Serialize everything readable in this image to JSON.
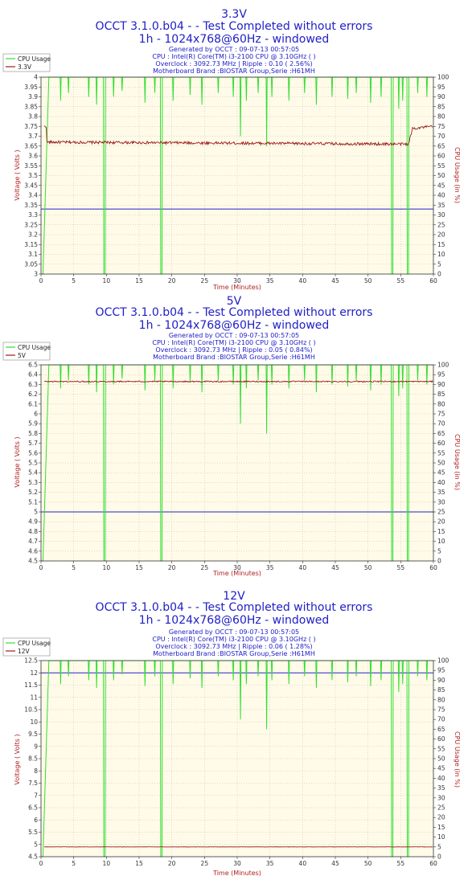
{
  "colors": {
    "cpu": "#33dd33",
    "voltage": "#9b1c1c",
    "reference": "#2222cc",
    "plot_bg": "#fffbe8",
    "grid": "#b8b8b8",
    "title": "#2020c8"
  },
  "chart_data": [
    {
      "type": "line",
      "title": "3.3V",
      "subtitle1": "OCCT 3.1.0.b04 -  - Test Completed without errors",
      "subtitle2": "1h - 1024x768@60Hz - windowed",
      "info": [
        "Generated by OCCT : 09-07-13 00:57:05",
        "CPU : Intel(R) Core(TM) i3-2100 CPU @ 3.10GHz (  )",
        "Overclock : 3092.73 MHz | Ripple : 0.10 ( 2.56%)",
        "Motherboard Brand :BIOSTAR Group,Serie :H61MH"
      ],
      "xlabel": "Time (Minutes)",
      "ylabel": "Voltage ( Volts )",
      "y2label": "CPU Usage (in %)",
      "xlim": [
        0,
        60
      ],
      "ylim": [
        3,
        4
      ],
      "yticks": [
        3,
        3.05,
        3.1,
        3.15,
        3.2,
        3.25,
        3.3,
        3.35,
        3.4,
        3.45,
        3.5,
        3.55,
        3.6,
        3.65,
        3.7,
        3.75,
        3.8,
        3.85,
        3.9,
        3.95,
        4
      ],
      "ytick_labels": [
        "3",
        "3.05",
        "3.1",
        "3.15",
        "3.2",
        "3.25",
        "3.3",
        "3.35",
        "3.4",
        "3.45",
        "3.5",
        "3.55",
        "3.6",
        "3.65",
        "3.7",
        "3.75",
        "3.8",
        "3.85",
        "3.9",
        "3.95",
        "4"
      ],
      "y2lim": [
        0,
        100
      ],
      "y2ticks": [
        0,
        5,
        10,
        15,
        20,
        25,
        30,
        35,
        40,
        45,
        50,
        55,
        60,
        65,
        70,
        75,
        80,
        85,
        90,
        95,
        100
      ],
      "y2tick_labels": [
        "0",
        "5",
        "10",
        "15",
        "20",
        "25",
        "30",
        "35",
        "40",
        "45",
        "50",
        "55",
        "60",
        "65",
        "70",
        "75",
        "80",
        "85",
        "90",
        "95",
        "100"
      ],
      "xticks": [
        0,
        5,
        10,
        15,
        20,
        25,
        30,
        35,
        40,
        45,
        50,
        55,
        60
      ],
      "xtick_labels": [
        "0",
        "5",
        "10",
        "15",
        "20",
        "25",
        "30",
        "35",
        "40",
        "45",
        "50",
        "55",
        "60"
      ],
      "legend": [
        "CPU Usage",
        "3.3V"
      ],
      "legend_position": "top-left",
      "reference_voltage": 3.33,
      "voltage_profile": [
        [
          0,
          3.75
        ],
        [
          0.8,
          3.75
        ],
        [
          0.9,
          3.67
        ],
        [
          56.2,
          3.66
        ],
        [
          56.8,
          3.74
        ],
        [
          60,
          3.75
        ]
      ],
      "voltage_noise": 0.007,
      "grid": true
    },
    {
      "type": "line",
      "title": "5V",
      "subtitle1": "OCCT 3.1.0.b04 -  - Test Completed without errors",
      "subtitle2": "1h - 1024x768@60Hz - windowed",
      "info": [
        "Generated by OCCT : 09-07-13 00:57:05",
        "CPU : Intel(R) Core(TM) i3-2100 CPU @ 3.10GHz (  )",
        "Overclock : 3092.73 MHz | Ripple : 0.05 ( 0.84%)",
        "Motherboard Brand :BIOSTAR Group,Serie :H61MH"
      ],
      "xlabel": "Time (Minutes)",
      "ylabel": "Voltage ( Volts )",
      "y2label": "CPU Usage (in %)",
      "xlim": [
        0,
        60
      ],
      "ylim": [
        4.5,
        6.5
      ],
      "yticks": [
        4.5,
        4.6,
        4.7,
        4.8,
        4.9,
        5,
        5.1,
        5.2,
        5.3,
        5.4,
        5.5,
        5.6,
        5.7,
        5.8,
        5.9,
        6,
        6.1,
        6.2,
        6.3,
        6.4,
        6.5
      ],
      "ytick_labels": [
        "4.5",
        "4.6",
        "4.7",
        "4.8",
        "4.9",
        "5",
        "5.1",
        "5.2",
        "5.3",
        "5.4",
        "5.5",
        "5.6",
        "5.7",
        "5.8",
        "5.9",
        "6",
        "6.1",
        "6.2",
        "6.3",
        "6.4",
        "6.5"
      ],
      "y2lim": [
        0,
        100
      ],
      "y2ticks": [
        0,
        5,
        10,
        15,
        20,
        25,
        30,
        35,
        40,
        45,
        50,
        55,
        60,
        65,
        70,
        75,
        80,
        85,
        90,
        95,
        100
      ],
      "y2tick_labels": [
        "0",
        "5",
        "10",
        "15",
        "20",
        "25",
        "30",
        "35",
        "40",
        "45",
        "50",
        "55",
        "60",
        "65",
        "70",
        "75",
        "80",
        "85",
        "90",
        "95",
        "100"
      ],
      "xticks": [
        0,
        5,
        10,
        15,
        20,
        25,
        30,
        35,
        40,
        45,
        50,
        55,
        60
      ],
      "xtick_labels": [
        "0",
        "5",
        "10",
        "15",
        "20",
        "25",
        "30",
        "35",
        "40",
        "45",
        "50",
        "55",
        "60"
      ],
      "legend": [
        "CPU Usage",
        "5V"
      ],
      "legend_position": "top-left",
      "reference_voltage": 5.0,
      "voltage_profile": [
        [
          0,
          6.33
        ],
        [
          60,
          6.33
        ]
      ],
      "voltage_noise": 0.006,
      "grid": true
    },
    {
      "type": "line",
      "title": "12V",
      "subtitle1": "OCCT 3.1.0.b04 -  - Test Completed without errors",
      "subtitle2": "1h - 1024x768@60Hz - windowed",
      "info": [
        "Generated by OCCT : 09-07-13 00:57:05",
        "CPU : Intel(R) Core(TM) i3-2100 CPU @ 3.10GHz (  )",
        "Overclock : 3092.73 MHz | Ripple : 0.06 ( 1.28%)",
        "Motherboard Brand :BIOSTAR Group,Serie :H61MH"
      ],
      "xlabel": "Time (Minutes)",
      "ylabel": "Voltage ( Volts )",
      "y2label": "CPU Usage (in %)",
      "xlim": [
        0,
        60
      ],
      "ylim": [
        4.5,
        12.5
      ],
      "yticks": [
        4.5,
        5,
        5.5,
        6,
        6.5,
        7,
        7.5,
        8,
        8.5,
        9,
        9.5,
        10,
        10.5,
        11,
        11.5,
        12,
        12.5
      ],
      "ytick_labels": [
        "4.5",
        "5",
        "5.5",
        "6",
        "6.5",
        "7",
        "7.5",
        "8",
        "8.5",
        "9",
        "9.5",
        "10",
        "10.5",
        "11",
        "11.5",
        "12",
        "12.5"
      ],
      "y2lim": [
        0,
        100
      ],
      "y2ticks": [
        0,
        5,
        10,
        15,
        20,
        25,
        30,
        35,
        40,
        45,
        50,
        55,
        60,
        65,
        70,
        75,
        80,
        85,
        90,
        95,
        100
      ],
      "y2tick_labels": [
        "0",
        "5",
        "10",
        "15",
        "20",
        "25",
        "30",
        "35",
        "40",
        "45",
        "50",
        "55",
        "60",
        "65",
        "70",
        "75",
        "80",
        "85",
        "90",
        "95",
        "100"
      ],
      "xticks": [
        0,
        5,
        10,
        15,
        20,
        25,
        30,
        35,
        40,
        45,
        50,
        55,
        60
      ],
      "xtick_labels": [
        "0",
        "5",
        "10",
        "15",
        "20",
        "25",
        "30",
        "35",
        "40",
        "45",
        "50",
        "55",
        "60"
      ],
      "legend": [
        "CPU Usage",
        "12V"
      ],
      "legend_position": "top-left",
      "reference_voltage": 12.0,
      "voltage_profile": [
        [
          0,
          4.9
        ],
        [
          60,
          4.9
        ]
      ],
      "voltage_noise": 0.005,
      "grid": true
    }
  ],
  "cpu_usage": {
    "baseline": 100,
    "ramp": [
      [
        0,
        0
      ],
      [
        0.3,
        0
      ],
      [
        1.2,
        100
      ]
    ],
    "deep_drops": [
      [
        9.6,
        0
      ],
      [
        9.8,
        0
      ],
      [
        18.3,
        0
      ],
      [
        18.5,
        0
      ],
      [
        53.6,
        0
      ],
      [
        53.8,
        0
      ],
      [
        56.0,
        0
      ],
      [
        56.2,
        0
      ]
    ],
    "spikes": [
      [
        3.0,
        88
      ],
      [
        4.2,
        92
      ],
      [
        7.3,
        90
      ],
      [
        8.5,
        86
      ],
      [
        11.1,
        90
      ],
      [
        12.4,
        93
      ],
      [
        15.9,
        87
      ],
      [
        17.4,
        92
      ],
      [
        20.2,
        88
      ],
      [
        22.8,
        91
      ],
      [
        24.6,
        86
      ],
      [
        27.1,
        92
      ],
      [
        29.4,
        90
      ],
      [
        30.5,
        70
      ],
      [
        31.4,
        88
      ],
      [
        33.2,
        92
      ],
      [
        34.5,
        65
      ],
      [
        35.3,
        90
      ],
      [
        37.9,
        88
      ],
      [
        40.3,
        92
      ],
      [
        42.1,
        86
      ],
      [
        44.5,
        90
      ],
      [
        46.9,
        89
      ],
      [
        48.2,
        92
      ],
      [
        50.4,
        87
      ],
      [
        52.0,
        90
      ],
      [
        54.7,
        84
      ],
      [
        55.3,
        88
      ],
      [
        57.6,
        92
      ],
      [
        59.0,
        90
      ]
    ]
  }
}
